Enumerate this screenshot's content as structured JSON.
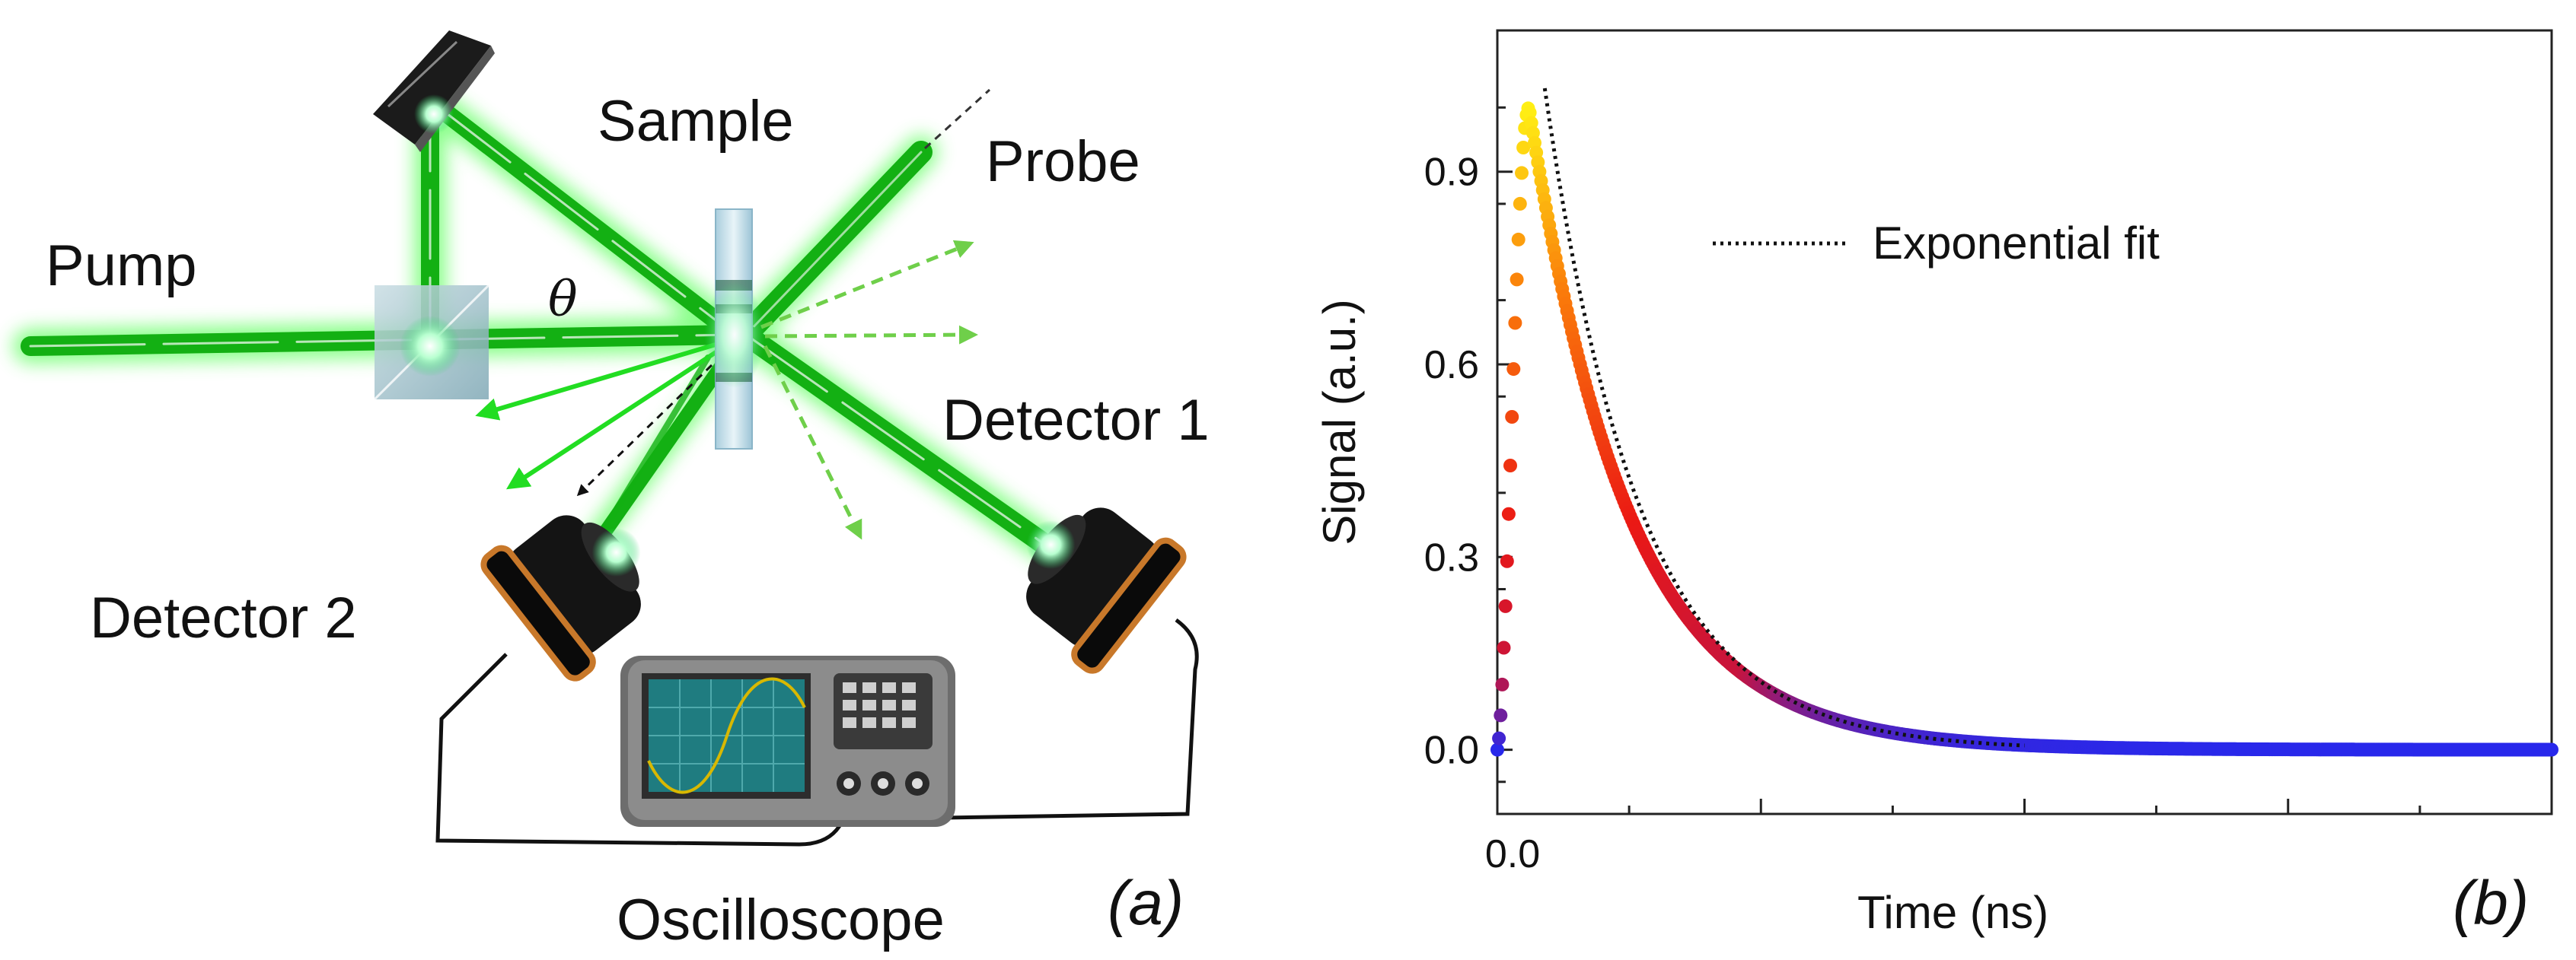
{
  "panel_a": {
    "label": "(a)",
    "labels": {
      "sample": "Sample",
      "probe": "Probe",
      "pump": "Pump",
      "theta": "θ",
      "detector1": "Detector 1",
      "detector2": "Detector 2",
      "oscilloscope": "Oscilloscope"
    },
    "colors": {
      "beam": "#22dd22",
      "glow": "#7dff7d",
      "dashed_arrow": "#6fcf4a",
      "detector_body": "#111111",
      "detector_rim": "#c8782a",
      "scope_case": "#8c8c8c",
      "scope_screen": "#1f7c80",
      "scope_wave": "#d8b800"
    }
  },
  "panel_b": {
    "label": "(b)",
    "chart_data": {
      "type": "scatter",
      "xlabel": "Time (ns)",
      "ylabel": "Signal (a.u.)",
      "x_tick_labels": [
        "0.0"
      ],
      "x_major_ticks": [
        0,
        1,
        2,
        3,
        4
      ],
      "ylim": [
        -0.1,
        1.12
      ],
      "y_ticks": [
        0.0,
        0.3,
        0.6,
        0.9
      ],
      "y_tick_labels": [
        "0.0",
        "0.3",
        "0.6",
        "0.9"
      ],
      "xlim": [
        0,
        4
      ],
      "series": [
        {
          "name": "Signal",
          "style": "dots colored by amplitude (blue→red→yellow)",
          "model": {
            "rise_time": 0.06,
            "peak_time": 0.12,
            "decay_tau": 0.38
          },
          "x": [
            0.0,
            0.05,
            0.1,
            0.12,
            0.2,
            0.3,
            0.5,
            0.75,
            1.0,
            1.5,
            2.0,
            2.5,
            3.0,
            3.5,
            4.0
          ],
          "y": [
            0.0,
            0.45,
            0.96,
            1.0,
            0.81,
            0.63,
            0.38,
            0.2,
            0.1,
            0.03,
            0.01,
            0.0,
            0.0,
            0.0,
            0.0
          ]
        },
        {
          "name": "Exponential fit",
          "style": "dotted black line",
          "x": [
            0.18,
            0.3,
            0.5,
            0.75,
            1.0,
            1.5,
            2.0
          ],
          "y": [
            1.03,
            0.75,
            0.44,
            0.23,
            0.12,
            0.03,
            0.01
          ]
        }
      ],
      "legend": {
        "position": "top-right",
        "entries": [
          "Exponential fit"
        ]
      },
      "grid": false
    }
  }
}
